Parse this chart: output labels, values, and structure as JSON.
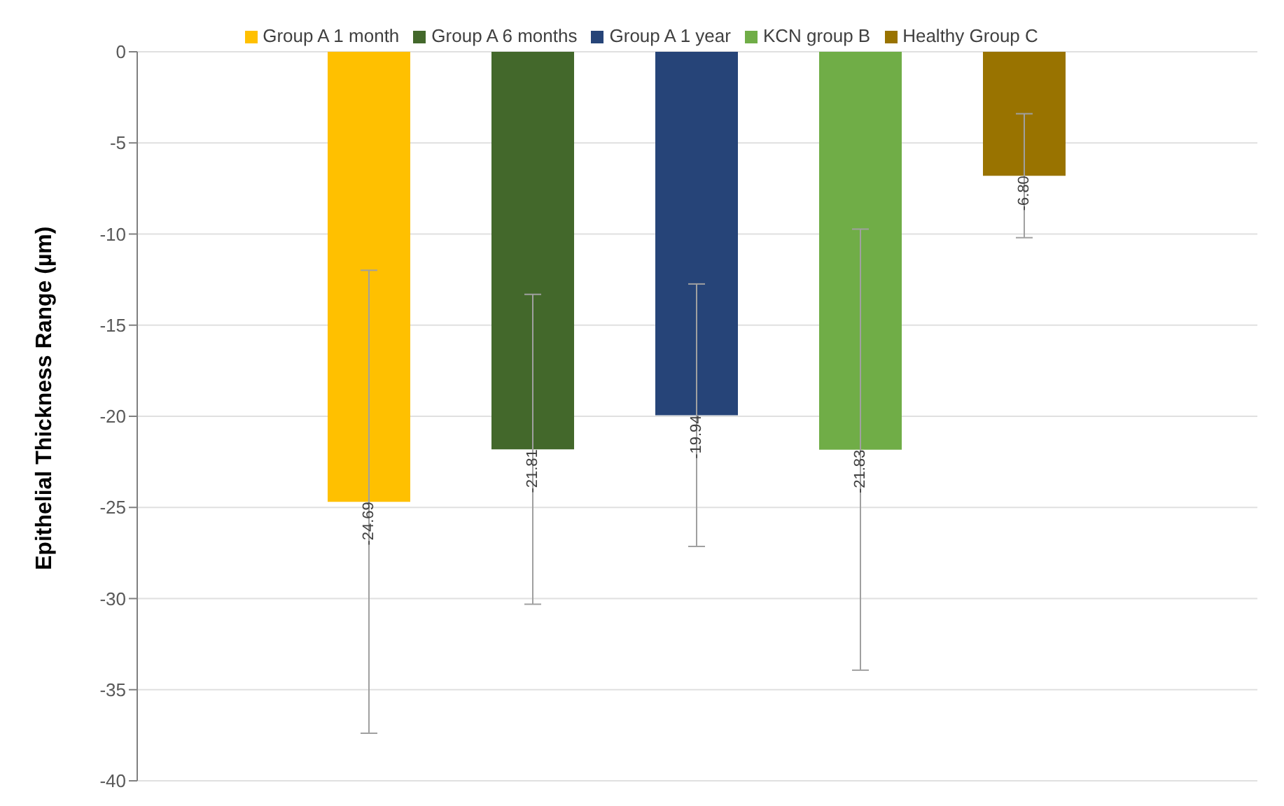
{
  "chart_data": {
    "type": "bar",
    "ylabel": "Epithelial Thickness Range (µm)",
    "categories": [
      null
    ],
    "series": [
      {
        "name": "Group A 1 month",
        "color": "#ffc000",
        "values": [
          -24.69
        ],
        "errors": [
          12.7
        ],
        "value_labels": [
          "-24.69"
        ]
      },
      {
        "name": "Group A 6 months",
        "color": "#43682b",
        "values": [
          -21.81
        ],
        "errors": [
          8.5
        ],
        "value_labels": [
          "-21.81"
        ]
      },
      {
        "name": "Group A 1 year",
        "color": "#264478",
        "values": [
          -19.94
        ],
        "errors": [
          7.2
        ],
        "value_labels": [
          "-19.94"
        ]
      },
      {
        "name": "KCN group B",
        "color": "#70ad47",
        "values": [
          -21.83
        ],
        "errors": [
          12.1
        ],
        "value_labels": [
          "-21.83"
        ]
      },
      {
        "name": "Healthy Group C",
        "color": "#997300",
        "values": [
          -6.8
        ],
        "errors": [
          3.4
        ],
        "value_labels": [
          "-6.80"
        ]
      }
    ],
    "ylim": [
      -40,
      0
    ],
    "yticks": [
      0,
      -5,
      -10,
      -15,
      -20,
      -25,
      -30,
      -35,
      -40
    ],
    "grid": "y",
    "legend": "top"
  }
}
